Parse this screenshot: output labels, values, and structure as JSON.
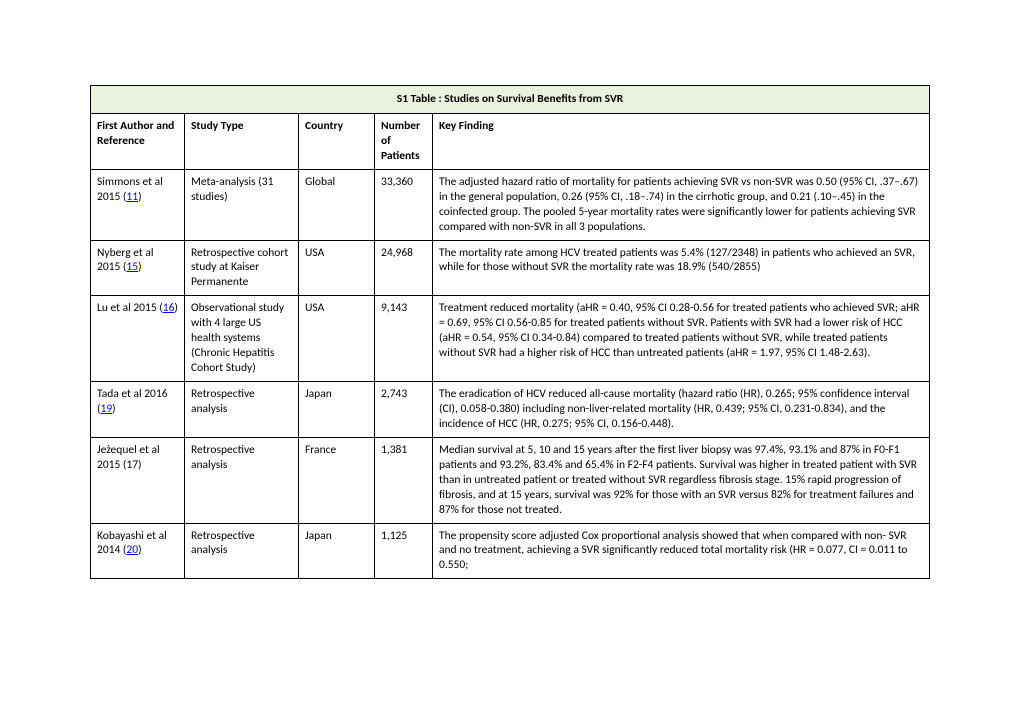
{
  "table": {
    "title": "S1 Table : Studies on Survival Benefits from SVR",
    "title_bg": "#eaf1dd",
    "ref_link_color": "#0000ff",
    "headers": {
      "author": "First Author and Reference",
      "type": "Study Type",
      "country": "Country",
      "num": "Number of Patients",
      "key": "Key Finding"
    },
    "rows": [
      {
        "author_pre": "Simmons et al 2015  (",
        "ref": "11",
        "author_post": ")",
        "type": "Meta-analysis  (31 studies)",
        "country": "Global",
        "num": "33,360",
        "key": "The adjusted hazard ratio of mortality for patients achieving SVR vs non-SVR was 0.50 (95% CI, .37–.67) in the general population, 0.26 (95% CI, .18–.74) in the cirrhotic group, and 0.21 (.10–.45) in the coinfected group. The pooled 5-year mortality rates were significantly lower for patients achieving SVR compared with non-SVR in all 3 populations."
      },
      {
        "author_pre": "Nyberg et al 2015 (",
        "ref": "15",
        "author_post": ")",
        "type": "Retrospective cohort study at Kaiser Permanente",
        "country": "USA",
        "num": "24,968",
        "key": "The mortality rate among HCV treated patients was 5.4% (127/2348) in patients who achieved an SVR, while for those without SVR the mortality rate was 18.9% (540/2855)"
      },
      {
        "author_pre": "Lu et al 2015 (",
        "ref": "16",
        "author_post": ")",
        "type": "Observational study with 4 large US health systems (Chronic Hepatitis Cohort Study)",
        "country": "USA",
        "num": "9,143",
        "key": "Treatment reduced mortality (aHR = 0.40, 95% CI 0.28-0.56 for treated patients who achieved SVR; aHR = 0.69, 95% CI 0.56-0.85 for treated patients without SVR. Patients with SVR had a lower risk of HCC (aHR = 0.54, 95% CI 0.34-0.84) compared to treated patients without SVR, while treated patients without SVR had a higher risk of HCC than untreated patients (aHR = 1.97, 95% CI 1.48-2.63)."
      },
      {
        "author_pre": "Tada et al 2016 (",
        "ref": "19",
        "author_post": ")",
        "type": "Retrospective analysis",
        "country": "Japan",
        "num": "2,743",
        "key": "The eradication of HCV reduced all-cause mortality (hazard ratio (HR), 0.265; 95% confidence interval (CI), 0.058-0.380) including non-liver-related mortality (HR, 0.439; 95% CI, 0.231-0.834), and the incidence of HCC (HR, 0.275; 95% CI, 0.156-0.448)."
      },
      {
        "author_pre": "Jeżequel et al 2015 (17)",
        "ref": "",
        "author_post": "",
        "type": "Retrospective analysis",
        "country": "France",
        "num": "1,381",
        "key": "Median survival at 5, 10 and 15 years after the first liver biopsy was 97.4%, 93.1% and 87% in F0-F1 patients and 93.2%, 83.4% and 65.4% in F2-F4 patients. Survival was higher in treated patient with SVR than in untreated patient or treated without SVR regardless fibrosis stage. 15% rapid progression of fibrosis, and at 15 years, survival was 92% for those with an SVR versus 82% for treatment failures and 87% for those not treated."
      },
      {
        "author_pre": "Kobayashi et al 2014 (",
        "ref": "20",
        "author_post": ")",
        "type": "Retrospective analysis",
        "country": "Japan",
        "num": "1,125",
        "key": "The propensity score adjusted Cox proportional analysis showed that when compared with non- SVR and no treatment, achieving a SVR significantly reduced total mortality risk (HR = 0.077, CI = 0.011 to 0.550;"
      }
    ]
  }
}
